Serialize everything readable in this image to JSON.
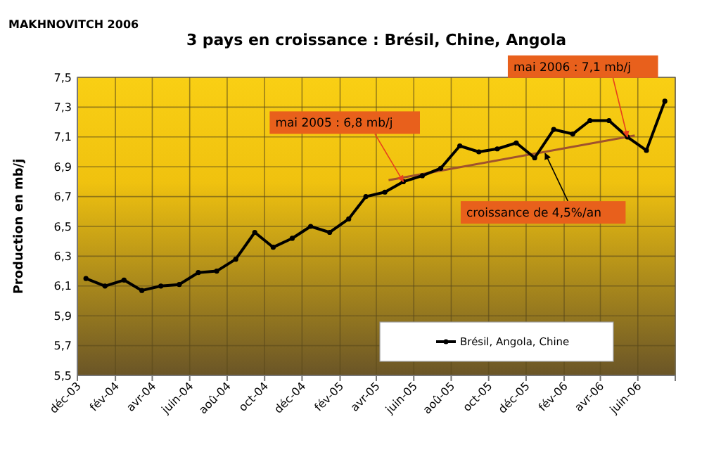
{
  "chart_data": {
    "type": "line",
    "title": "3 pays en croissance  : Brésil, Chine, Angola",
    "ylabel": "Production en mb/j",
    "annotations": [
      "MAKHNOVITCH 2006",
      {
        "text": "mai 2005 : 6,8 mb/j",
        "x": "2005-05-15",
        "y": 6.8
      },
      {
        "text": "mai 2006 : 7,1 mb/j",
        "x": "2006-05-15",
        "y": 7.1
      },
      {
        "text": "croissance de 4,5%/an",
        "x": "2006-01-01",
        "y": 6.99
      }
    ],
    "x": [
      "2003-12-15",
      "2004-01-15",
      "2004-02-15",
      "2004-03-15",
      "2004-04-15",
      "2004-05-15",
      "2004-06-15",
      "2004-07-15",
      "2004-08-15",
      "2004-09-15",
      "2004-10-15",
      "2004-11-15",
      "2004-12-15",
      "2005-01-15",
      "2005-02-15",
      "2005-03-15",
      "2005-04-15",
      "2005-05-15",
      "2005-06-15",
      "2005-07-15",
      "2005-08-15",
      "2005-09-15",
      "2005-10-15",
      "2005-11-15",
      "2005-12-15",
      "2006-01-15",
      "2006-02-15",
      "2006-03-15",
      "2006-04-15",
      "2006-05-15",
      "2006-06-15",
      "2006-07-15"
    ],
    "series": [
      {
        "name": "Brésil, Angola, Chine",
        "color": "#000000",
        "marker": "circle",
        "values": [
          6.15,
          6.1,
          6.14,
          6.07,
          6.1,
          6.11,
          6.19,
          6.2,
          6.28,
          6.46,
          6.36,
          6.42,
          6.5,
          6.46,
          6.55,
          6.7,
          6.73,
          6.8,
          6.84,
          6.89,
          7.04,
          7.0,
          7.02,
          7.06,
          6.96,
          7.15,
          7.12,
          7.21,
          7.21,
          7.1,
          7.01,
          7.34
        ]
      },
      {
        "type": "line",
        "color": "#a0522d",
        "marker": "none",
        "x": [
          "2005-04-21",
          "2006-05-27"
        ],
        "values": [
          6.81,
          7.11
        ]
      }
    ],
    "xlim": [
      "2003-12-01",
      "2006-08-01"
    ],
    "xticks": [
      {
        "value": "2003-12-01",
        "label": "déc-03"
      },
      {
        "value": "2004-02-01",
        "label": "fév-04"
      },
      {
        "value": "2004-04-01",
        "label": "avr-04"
      },
      {
        "value": "2004-06-01",
        "label": "juin-04"
      },
      {
        "value": "2004-08-01",
        "label": "aoû-04"
      },
      {
        "value": "2004-10-01",
        "label": "oct-04"
      },
      {
        "value": "2004-12-01",
        "label": "déc-04"
      },
      {
        "value": "2005-02-01",
        "label": "fév-05"
      },
      {
        "value": "2005-04-01",
        "label": "avr-05"
      },
      {
        "value": "2005-06-01",
        "label": "juin-05"
      },
      {
        "value": "2005-08-01",
        "label": "aoû-05"
      },
      {
        "value": "2005-10-01",
        "label": "oct-05"
      },
      {
        "value": "2005-12-01",
        "label": "déc-05"
      },
      {
        "value": "2006-02-01",
        "label": "fév-06"
      },
      {
        "value": "2006-04-01",
        "label": "avr-06"
      },
      {
        "value": "2006-06-01",
        "label": "juin-06"
      },
      {
        "value": "2006-08-01",
        "label": null
      }
    ],
    "ylim": [
      5.5,
      7.5
    ],
    "yticks": [
      {
        "value": 5.5,
        "label": "5,5"
      },
      {
        "value": 5.7,
        "label": "5,7"
      },
      {
        "value": 5.9,
        "label": "5,9"
      },
      {
        "value": 6.1,
        "label": "6,1"
      },
      {
        "value": 6.3,
        "label": "6,3"
      },
      {
        "value": 6.5,
        "label": "6,5"
      },
      {
        "value": 6.7,
        "label": "6,7"
      },
      {
        "value": 6.9,
        "label": "6,9"
      },
      {
        "value": 7.1,
        "label": "7,1"
      },
      {
        "value": 7.3,
        "label": "7,3"
      },
      {
        "value": 7.5,
        "label": "7,5"
      }
    ],
    "grid": true,
    "legend": "bottom",
    "line_style": "solid"
  }
}
